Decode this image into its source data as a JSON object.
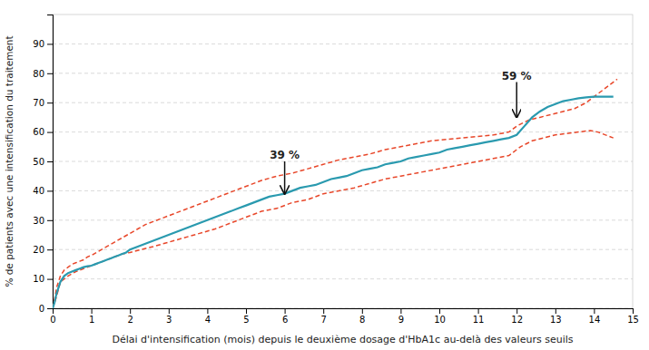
{
  "chart_data": {
    "type": "line",
    "xlabel": "Délai d'intensification (mois) depuis le deuxième dosage d'HbA1c au-delà des valeurs seuils",
    "ylabel": "% de patients avec une intensification du traitement",
    "xlim": [
      0,
      15
    ],
    "ylim": [
      0,
      100
    ],
    "xticks": [
      0,
      1,
      2,
      3,
      4,
      5,
      6,
      7,
      8,
      9,
      10,
      11,
      12,
      13,
      14,
      15
    ],
    "yticks": [
      0,
      10,
      20,
      30,
      40,
      50,
      60,
      70,
      80,
      90
    ],
    "grid": true,
    "series": [
      {
        "color": "#e8472a",
        "line_style": "dashed",
        "x": [
          0,
          0.05,
          0.1,
          0.2,
          0.3,
          0.4,
          0.5,
          0.6,
          0.7,
          0.8,
          0.9,
          1.0,
          1.2,
          1.4,
          1.6,
          1.8,
          2.0,
          2.2,
          2.4,
          2.6,
          2.8,
          3.0,
          3.2,
          3.4,
          3.6,
          3.8,
          4.0,
          4.3,
          4.6,
          5.0,
          5.4,
          5.8,
          6.2,
          6.6,
          7.0,
          7.4,
          7.8,
          8.2,
          8.6,
          9.0,
          9.4,
          9.8,
          10.2,
          10.6,
          11.0,
          11.4,
          11.8,
          12.0,
          12.3,
          12.6,
          12.9,
          13.2,
          13.5,
          13.8,
          14.0,
          14.2,
          14.4,
          14.6
        ],
        "values": [
          0,
          3,
          7,
          11,
          13,
          14,
          15,
          15.5,
          16,
          16.5,
          17.5,
          18,
          19.5,
          21,
          22.5,
          24,
          25.5,
          27,
          28.5,
          29.5,
          30.5,
          31.5,
          32.5,
          33.5,
          34.5,
          35.5,
          36.5,
          38,
          39.5,
          41.5,
          43.5,
          45,
          46,
          47.5,
          49,
          50.5,
          51.5,
          52.5,
          54,
          55,
          56,
          57,
          57.5,
          58,
          58.5,
          59,
          60,
          62,
          64,
          65,
          66,
          67,
          68,
          70,
          72,
          74,
          76,
          78
        ]
      },
      {
        "color": "#e8472a",
        "line_style": "dashed",
        "x": [
          0,
          0.05,
          0.1,
          0.2,
          0.4,
          0.6,
          0.8,
          1.0,
          1.2,
          1.4,
          1.6,
          1.8,
          2.0,
          2.3,
          2.6,
          3.0,
          3.4,
          3.8,
          4.2,
          4.6,
          5.0,
          5.4,
          5.8,
          6.2,
          6.6,
          7.0,
          7.4,
          7.8,
          8.2,
          8.6,
          9.0,
          9.4,
          9.8,
          10.2,
          10.6,
          11.0,
          11.4,
          11.8,
          12.1,
          12.4,
          12.7,
          13.0,
          13.3,
          13.6,
          13.9,
          14.1,
          14.3,
          14.5
        ],
        "values": [
          0,
          2,
          4,
          9,
          11,
          12.5,
          13.5,
          14.5,
          15.5,
          16.5,
          17.5,
          18.5,
          19,
          20,
          21,
          22.5,
          24,
          25.5,
          27,
          29,
          31,
          33,
          34,
          36,
          37,
          39,
          40,
          41,
          42.5,
          44,
          45,
          46,
          47,
          48,
          49,
          50,
          51,
          52,
          55,
          57,
          58,
          59,
          59.5,
          60,
          60.5,
          60,
          59,
          58
        ]
      },
      {
        "color": "#2a9aaf",
        "line_style": "solid",
        "x": [
          0,
          0.05,
          0.1,
          0.15,
          0.2,
          0.3,
          0.4,
          0.5,
          0.6,
          0.7,
          0.8,
          0.9,
          1.0,
          1.1,
          1.2,
          1.3,
          1.4,
          1.5,
          1.6,
          1.7,
          1.8,
          1.9,
          2.0,
          2.2,
          2.4,
          2.6,
          2.8,
          3.0,
          3.2,
          3.4,
          3.6,
          3.8,
          4.0,
          4.2,
          4.4,
          4.6,
          4.8,
          5.0,
          5.2,
          5.4,
          5.6,
          5.8,
          6.0,
          6.2,
          6.4,
          6.6,
          6.8,
          7.0,
          7.2,
          7.4,
          7.6,
          7.8,
          8.0,
          8.2,
          8.4,
          8.6,
          8.8,
          9.0,
          9.2,
          9.4,
          9.6,
          9.8,
          10.0,
          10.2,
          10.4,
          10.6,
          10.8,
          11.0,
          11.2,
          11.4,
          11.6,
          11.8,
          12.0,
          12.2,
          12.4,
          12.6,
          12.8,
          13.0,
          13.2,
          13.4,
          13.6,
          13.8,
          14.0,
          14.2,
          14.5
        ],
        "values": [
          0,
          2,
          5,
          7,
          9,
          11,
          12,
          12.5,
          13,
          13.5,
          14,
          14.3,
          14.5,
          15,
          15.5,
          16,
          16.5,
          17,
          17.5,
          18,
          18.5,
          19,
          20,
          21,
          22,
          23,
          24,
          25,
          26,
          27,
          28,
          29,
          30,
          31,
          32,
          33,
          34,
          35,
          36,
          37,
          38,
          38.5,
          39,
          40,
          41,
          41.5,
          42,
          43,
          44,
          44.5,
          45,
          46,
          47,
          47.5,
          48,
          49,
          49.5,
          50,
          51,
          51.5,
          52,
          52.5,
          53,
          54,
          54.5,
          55,
          55.5,
          56,
          56.5,
          57,
          57.5,
          58,
          59,
          62,
          65,
          67,
          68.5,
          69.5,
          70.5,
          71,
          71.5,
          71.8,
          72,
          72,
          72
        ]
      }
    ],
    "annotations": [
      {
        "text": "39 %",
        "x": 6.0,
        "y": 39.0,
        "y_text": 50.0
      },
      {
        "text": "59 %",
        "x": 12.0,
        "y": 65.0,
        "y_text": 77.0
      }
    ]
  }
}
